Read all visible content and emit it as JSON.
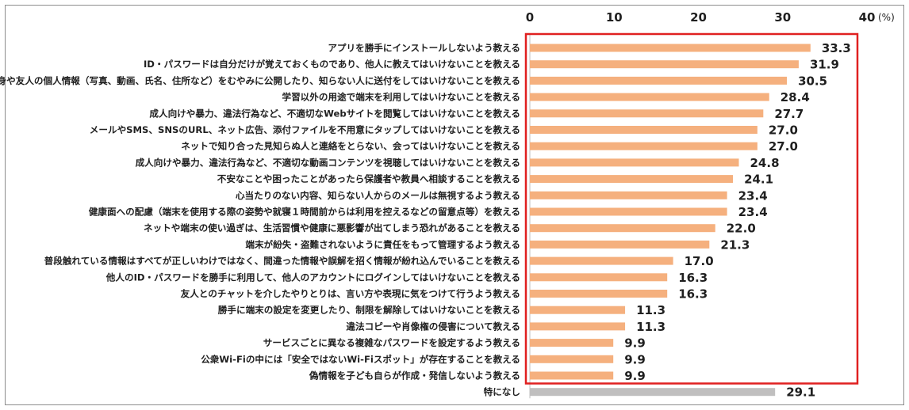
{
  "chart_data": {
    "type": "bar",
    "orientation": "horizontal",
    "title": "",
    "xlabel": "",
    "ylabel": "",
    "xlim": [
      0,
      40
    ],
    "ticks": [
      0,
      10,
      20,
      30,
      40
    ],
    "unit": "(%)",
    "tick_position": "top",
    "grid": false,
    "categories": [
      "アプリを勝手にインストールしないよう教える",
      "ID・パスワードは自分だけが覚えておくものであり、他人に教えてはいけないことを教える",
      "自身や友人の個人情報（写真、動画、氏名、住所など）をむやみに公開したり、知らない人に送付をしてはいけないことを教える",
      "学習以外の用途で端末を利用してはいけないことを教える",
      "成人向けや暴力、違法行為など、不適切なWebサイトを閲覧してはいけないことを教える",
      "メールやSMS、SNSのURL、ネット広告、添付ファイルを不用意にタップしてはいけないことを教える",
      "ネットで知り合った見知らぬ人と連絡をとらない、会ってはいけないことを教える",
      "成人向けや暴力、違法行為など、不適切な動画コンテンツを視聴してはいけないことを教える",
      "不安なことや困ったことがあったら保護者や教員へ相談することを教える",
      "心当たりのない内容、知らない人からのメールは無視するよう教える",
      "健康面への配慮（端末を使用する際の姿勢や就寝１時間前からは利用を控えるなどの留意点等）を教える",
      "ネットや端末の使い過ぎは、生活習慣や健康に悪影響が出てしまう恐れがあることを教える",
      "端末が紛失・盗難されないように責任をもって管理するよう教える",
      "普段触れている情報はすべてが正しいわけではなく、間違った情報や誤解を招く情報が紛れ込んでいることを教える",
      "他人のID・パスワードを勝手に利用して、他人のアカウントにログインしてはいけないことを教える",
      "友人とのチャットを介したやりとりは、言い方や表現に気をつけて行うよう教える",
      "勝手に端末の設定を変更したり、制限を解除してはいけないことを教える",
      "違法コピーや肖像権の侵害について教える",
      "サービスごとに異なる複雑なパスワードを設定するよう教える",
      "公衆Wi-Fiの中には「安全ではないWi-Fiスポット」が存在することを教える",
      "偽情報を子ども自らが作成・発信しないよう教える",
      "特になし"
    ],
    "values": [
      33.3,
      31.9,
      30.5,
      28.4,
      27.7,
      27.0,
      27.0,
      24.8,
      24.1,
      23.4,
      23.4,
      22.0,
      21.3,
      17.0,
      16.3,
      16.3,
      11.3,
      11.3,
      9.9,
      9.9,
      9.9,
      29.1
    ],
    "value_labels": [
      "33.3",
      "31.9",
      "30.5",
      "28.4",
      "27.7",
      "27.0",
      "27.0",
      "24.8",
      "24.1",
      "23.4",
      "23.4",
      "22.0",
      "21.3",
      "17.0",
      "16.3",
      "16.3",
      "11.3",
      "11.3",
      "9.9",
      "9.9",
      "9.9",
      "29.1"
    ],
    "bar_color": "#f5b07e",
    "last_bar_color": "#c0bfbf",
    "highlight_box_color": "#e02020",
    "highlight_box_covers_categories": 21
  }
}
